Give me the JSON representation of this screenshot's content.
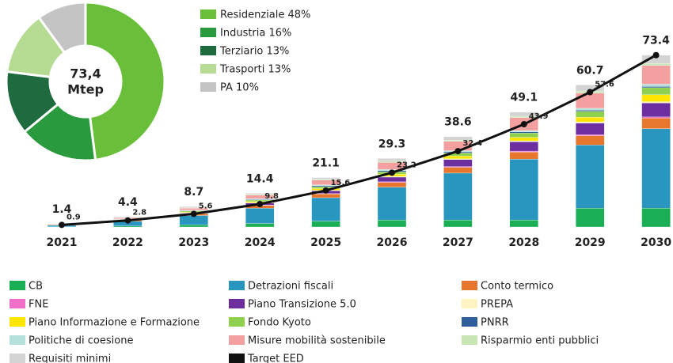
{
  "chart_data": [
    {
      "type": "bar",
      "categories": [
        "2021",
        "2022",
        "2023",
        "2024",
        "2025",
        "2026",
        "2027",
        "2028",
        "2029",
        "2030"
      ],
      "ylim": [
        0,
        75
      ],
      "totals": [
        1.4,
        4.4,
        8.7,
        14.4,
        21.1,
        29.3,
        38.6,
        49.1,
        60.7,
        73.4
      ],
      "series": [
        {
          "name": "CB",
          "color": "#1aaf54",
          "values": [
            0.1,
            0.4,
            0.9,
            1.5,
            2.5,
            3,
            3,
            3,
            8,
            8
          ]
        },
        {
          "name": "Detrazioni fiscali",
          "color": "#2996c0",
          "values": [
            0.6,
            2.0,
            4.0,
            6.5,
            10.0,
            14,
            20,
            26,
            27,
            34
          ]
        },
        {
          "name": "Conto termico",
          "color": "#e8772e",
          "values": [
            0.2,
            0.5,
            0.8,
            1.2,
            1.6,
            2,
            2.5,
            3,
            4,
            4.5
          ]
        },
        {
          "name": "FNE",
          "color": "#f06ec8",
          "values": [
            0,
            0.1,
            0.1,
            0.2,
            0.2,
            0.3,
            0.3,
            0.4,
            0.4,
            0.5
          ]
        },
        {
          "name": "Piano Transizione 5.0",
          "color": "#6d2fa0",
          "values": [
            0,
            0,
            0.2,
            0.8,
            1.2,
            2,
            3,
            4,
            5,
            6
          ]
        },
        {
          "name": "PREPA",
          "color": "#fff3c4",
          "values": [
            0,
            0,
            0.1,
            0.2,
            0.2,
            0.3,
            0.3,
            0.4,
            0.5,
            0.5
          ]
        },
        {
          "name": "Piano Informazione e Formazione",
          "color": "#ffe500",
          "values": [
            0,
            0.1,
            0.3,
            0.5,
            0.7,
            1,
            1.2,
            1.5,
            2,
            3
          ]
        },
        {
          "name": "Fondo Kyoto",
          "color": "#8fd14f",
          "values": [
            0.1,
            0.2,
            0.4,
            0.6,
            0.8,
            1,
            1.3,
            1.8,
            2.5,
            3
          ]
        },
        {
          "name": "PNRR",
          "color": "#2e5f9a",
          "values": [
            0,
            0.1,
            0.2,
            0.3,
            0.4,
            0.5,
            0.5,
            0.5,
            0.5,
            0.5
          ]
        },
        {
          "name": "Politiche di coesione",
          "color": "#b4e0dc",
          "values": [
            0,
            0.1,
            0.2,
            0.3,
            0.4,
            0.5,
            0.5,
            0.6,
            0.8,
            1
          ]
        },
        {
          "name": "Misure mobilità sostenibile",
          "color": "#f5a0a0",
          "values": [
            0.2,
            0.5,
            0.8,
            1.5,
            2.0,
            3,
            4,
            5.5,
            6.5,
            8
          ]
        },
        {
          "name": "Risparmio enti pubblici",
          "color": "#c7e6b4",
          "values": [
            0,
            0.1,
            0.2,
            0.3,
            0.4,
            0.5,
            0.5,
            0.6,
            0.8,
            0.8
          ]
        },
        {
          "name": "Requisiti minimi",
          "color": "#d4d4d4",
          "values": [
            0.2,
            0.3,
            0.5,
            0.5,
            0.7,
            1.2,
            1.5,
            1.8,
            2.7,
            3.6
          ]
        },
        {
          "name": "Target EED",
          "color": "#111111",
          "type": "line",
          "values": [
            0.9,
            2.8,
            5.6,
            9.8,
            15.6,
            23.2,
            32.4,
            43.9,
            57.6,
            73.4
          ],
          "value_labels": [
            "0.9",
            "2.8",
            "5.6",
            "9.8",
            "15.6",
            "23.2",
            "32.4",
            "43.9",
            "57.6",
            null
          ]
        }
      ]
    },
    {
      "type": "pie",
      "labels": [
        "Residenziale 48%",
        "Industria 16%",
        "Terziario 13%",
        "Trasporti 13%",
        "PA 10%"
      ],
      "values": [
        48,
        16,
        13,
        13,
        10
      ],
      "colors": [
        "#6abf3a",
        "#2a9a3e",
        "#1d6b3e",
        "#b5dc92",
        "#c4c4c4"
      ],
      "center_text": [
        "73,4",
        "Mtep"
      ]
    }
  ]
}
